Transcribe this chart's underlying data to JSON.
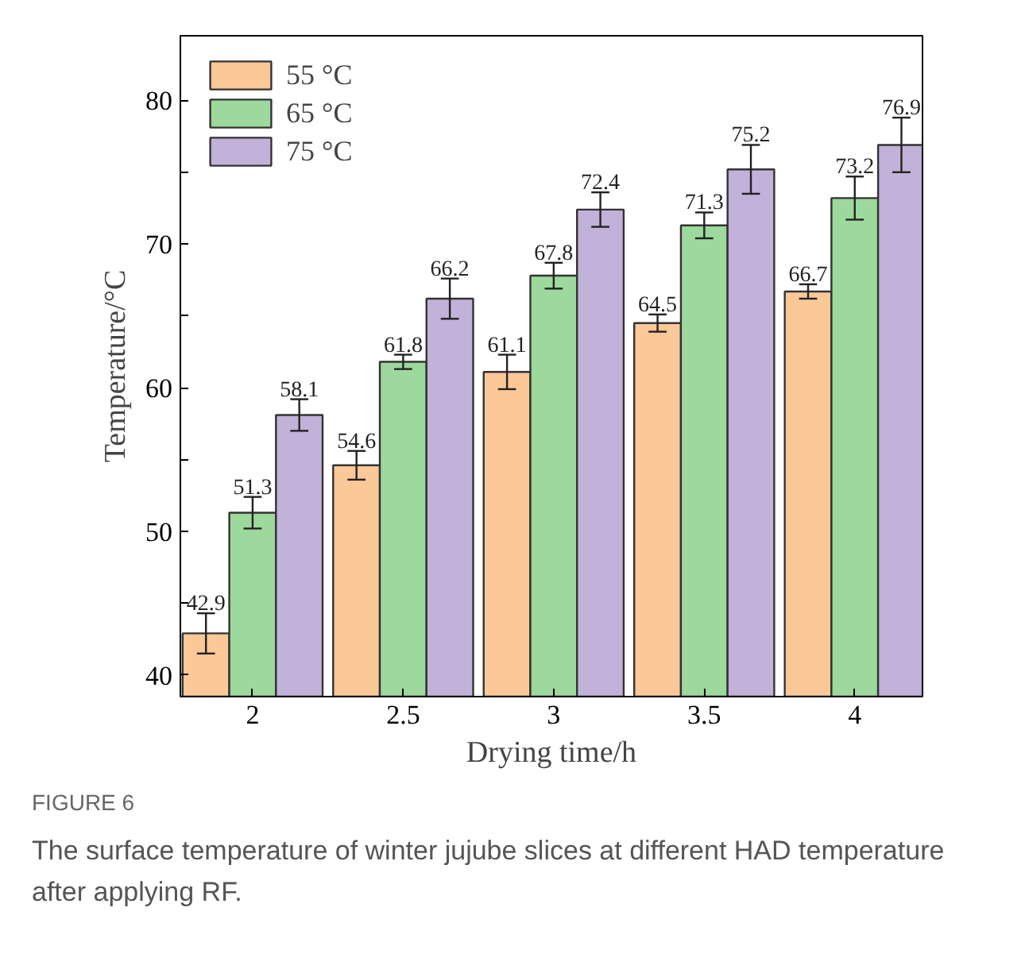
{
  "chart_data": {
    "type": "bar",
    "xlabel": "Drying time/h",
    "ylabel": "Temperature/°C",
    "categories": [
      "2",
      "2.5",
      "3",
      "3.5",
      "4"
    ],
    "series": [
      {
        "name": "55 °C",
        "color": "#fbc898",
        "values": [
          42.9,
          54.6,
          61.1,
          64.5,
          66.7
        ],
        "errors": [
          1.4,
          1.0,
          1.2,
          0.6,
          0.5
        ]
      },
      {
        "name": "65 °C",
        "color": "#9dd89d",
        "values": [
          51.3,
          61.8,
          67.8,
          71.3,
          73.2
        ],
        "errors": [
          1.1,
          0.5,
          0.9,
          0.9,
          1.5
        ]
      },
      {
        "name": "75 °C",
        "color": "#c2b1d8",
        "values": [
          58.1,
          66.2,
          72.4,
          75.2,
          76.9
        ],
        "errors": [
          1.1,
          1.4,
          1.2,
          1.7,
          1.9
        ]
      }
    ],
    "ylim": [
      38.5,
      84.5
    ],
    "yticks": [
      40,
      {
        "value": 45,
        "label": null
      },
      50,
      {
        "value": 55,
        "label": null
      },
      60,
      {
        "value": 65,
        "label": null
      },
      70,
      {
        "value": 75,
        "label": null
      },
      80
    ],
    "data_labels": true,
    "legend": "top left",
    "grid": false,
    "annotations": [
      "FIGURE 6",
      "The surface temperature of winter jujube slices at different HAD temperature after applying RF."
    ]
  }
}
